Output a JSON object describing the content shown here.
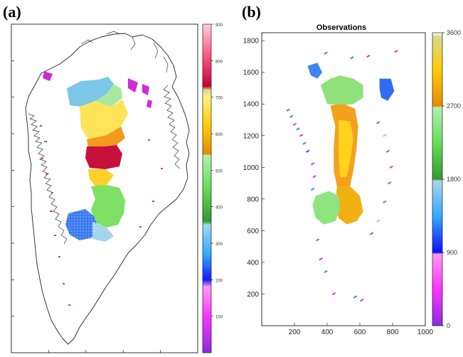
{
  "figure": {
    "panel_a_label": "(a)",
    "panel_b_label": "(b)"
  },
  "chart_data": [
    {
      "type": "heatmap",
      "panel": "(a)",
      "title": "",
      "description_map": "Greenland outline with a coloured interior region (spatial field)",
      "colorbar": {
        "min": 0,
        "max": 900,
        "ticks": [
          100,
          200,
          300,
          400,
          500,
          600,
          700,
          800,
          900
        ],
        "stops": [
          {
            "value": 0,
            "color": "#8a2be2"
          },
          {
            "value": 100,
            "color": "#ff33ff"
          },
          {
            "value": 180,
            "color": "#ff99ee"
          },
          {
            "value": 200,
            "color": "#1a1aff"
          },
          {
            "value": 270,
            "color": "#33aaff"
          },
          {
            "value": 350,
            "color": "#a0d8e8"
          },
          {
            "value": 360,
            "color": "#339933"
          },
          {
            "value": 450,
            "color": "#66dd55"
          },
          {
            "value": 540,
            "color": "#b4f0b4"
          },
          {
            "value": 545,
            "color": "#e68a00"
          },
          {
            "value": 620,
            "color": "#ffcc00"
          },
          {
            "value": 700,
            "color": "#fff380"
          },
          {
            "value": 720,
            "color": "#d6d98a"
          },
          {
            "value": 730,
            "color": "#c4003a"
          },
          {
            "value": 820,
            "color": "#ff5f8a"
          },
          {
            "value": 900,
            "color": "#ffd0dc"
          }
        ]
      },
      "regions": [
        {
          "name": "north",
          "value": 300
        },
        {
          "name": "north-central",
          "value": 700
        },
        {
          "name": "central",
          "value": 600
        },
        {
          "name": "central-south",
          "value": 800
        },
        {
          "name": "south-central",
          "value": 500
        },
        {
          "name": "south",
          "value": 300
        }
      ]
    },
    {
      "type": "heatmap",
      "panel": "(b)",
      "title": "Observations",
      "xlabel": "",
      "ylabel": "",
      "xlim": [
        0,
        1000
      ],
      "ylim": [
        0,
        1850
      ],
      "xticks": [
        200,
        400,
        600,
        800,
        1000
      ],
      "yticks": [
        200,
        400,
        600,
        800,
        1000,
        1200,
        1400,
        1600,
        1800
      ],
      "colorbar": {
        "min": 0,
        "max": 3600,
        "ticks": [
          0,
          900,
          1800,
          2700,
          3600
        ],
        "stops": [
          {
            "value": 0,
            "color": "#8a2be2"
          },
          {
            "value": 450,
            "color": "#ff33ff"
          },
          {
            "value": 880,
            "color": "#ff99ee"
          },
          {
            "value": 900,
            "color": "#1010ff"
          },
          {
            "value": 1350,
            "color": "#33aaff"
          },
          {
            "value": 1780,
            "color": "#a8d8e8"
          },
          {
            "value": 1800,
            "color": "#339933"
          },
          {
            "value": 2250,
            "color": "#66dd55"
          },
          {
            "value": 2680,
            "color": "#b4f0b4"
          },
          {
            "value": 2700,
            "color": "#e68a00"
          },
          {
            "value": 3150,
            "color": "#ffcc00"
          },
          {
            "value": 3550,
            "color": "#d6d98a"
          },
          {
            "value": 3600,
            "color": "#ffffff"
          }
        ]
      },
      "regions": [
        {
          "name": "north-blob",
          "x": 470,
          "y": 1450,
          "value": 2250
        },
        {
          "name": "center-band",
          "x": 500,
          "y": 1100,
          "value": 3000
        },
        {
          "name": "south-center",
          "x": 500,
          "y": 800,
          "value": 2900
        },
        {
          "name": "south-green",
          "x": 430,
          "y": 700,
          "value": 2300
        },
        {
          "name": "nw-blue",
          "x": 320,
          "y": 1600,
          "value": 1300
        },
        {
          "name": "ne-blue",
          "x": 760,
          "y": 1480,
          "value": 1200
        }
      ]
    }
  ]
}
